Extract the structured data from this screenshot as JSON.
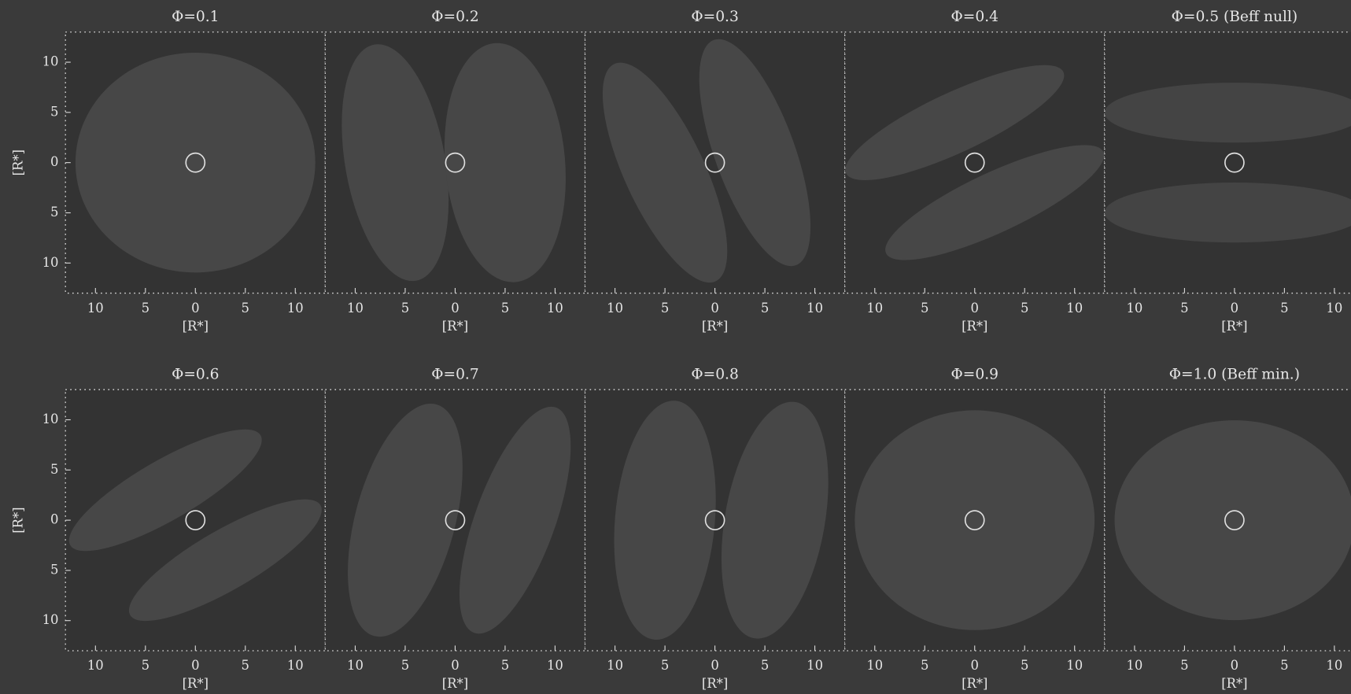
{
  "chart_data": [
    {
      "type": "image",
      "title": "Φ=0.1",
      "xlabel": "[R*]",
      "ylabel": "[R*]",
      "xlim": [
        -13,
        13
      ],
      "ylim": [
        -13,
        13
      ],
      "xticks": [
        {
          "value": -10,
          "label": "10"
        },
        {
          "value": -5,
          "label": "5"
        },
        0,
        5,
        10
      ],
      "yticks": [
        {
          "value": -10,
          "label": "10"
        },
        {
          "value": -5,
          "label": "5"
        },
        0,
        5,
        10
      ]
    },
    {
      "type": "image",
      "title": "Φ=0.2",
      "xlabel": "[R*]",
      "xlim": [
        -13,
        13
      ],
      "ylim": [
        -13,
        13
      ],
      "xticks": [
        {
          "value": -10,
          "label": "10"
        },
        {
          "value": -5,
          "label": "5"
        },
        0,
        5,
        10
      ]
    },
    {
      "type": "image",
      "title": "Φ=0.3",
      "xlabel": "[R*]",
      "xlim": [
        -13,
        13
      ],
      "ylim": [
        -13,
        13
      ],
      "xticks": [
        {
          "value": -10,
          "label": "10"
        },
        {
          "value": -5,
          "label": "5"
        },
        0,
        5,
        10
      ]
    },
    {
      "type": "image",
      "title": "Φ=0.4",
      "xlabel": "[R*]",
      "xlim": [
        -13,
        13
      ],
      "ylim": [
        -13,
        13
      ],
      "xticks": [
        {
          "value": -10,
          "label": "10"
        },
        {
          "value": -5,
          "label": "5"
        },
        0,
        5,
        10
      ]
    },
    {
      "type": "image",
      "title": "Φ=0.5 (Beff null)",
      "xlabel": "[R*]",
      "xlim": [
        -13,
        13
      ],
      "ylim": [
        -13,
        13
      ],
      "xticks": [
        {
          "value": -10,
          "label": "10"
        },
        {
          "value": -5,
          "label": "5"
        },
        0,
        5,
        10
      ]
    },
    {
      "type": "image",
      "title": "Φ=0.6",
      "xlabel": "[R*]",
      "ylabel": "[R*]",
      "xlim": [
        -13,
        13
      ],
      "ylim": [
        -13,
        13
      ],
      "xticks": [
        {
          "value": -10,
          "label": "10"
        },
        {
          "value": -5,
          "label": "5"
        },
        0,
        5,
        10
      ],
      "yticks": [
        {
          "value": -10,
          "label": "10"
        },
        {
          "value": -5,
          "label": "5"
        },
        0,
        5,
        10
      ]
    },
    {
      "type": "image",
      "title": "Φ=0.7",
      "xlabel": "[R*]",
      "xlim": [
        -13,
        13
      ],
      "ylim": [
        -13,
        13
      ],
      "xticks": [
        {
          "value": -10,
          "label": "10"
        },
        {
          "value": -5,
          "label": "5"
        },
        0,
        5,
        10
      ]
    },
    {
      "type": "image",
      "title": "Φ=0.8",
      "xlabel": "[R*]",
      "xlim": [
        -13,
        13
      ],
      "ylim": [
        -13,
        13
      ],
      "xticks": [
        {
          "value": -10,
          "label": "10"
        },
        {
          "value": -5,
          "label": "5"
        },
        0,
        5,
        10
      ]
    },
    {
      "type": "image",
      "title": "Φ=0.9",
      "xlabel": "[R*]",
      "xlim": [
        -13,
        13
      ],
      "ylim": [
        -13,
        13
      ],
      "xticks": [
        {
          "value": -10,
          "label": "10"
        },
        {
          "value": -5,
          "label": "5"
        },
        0,
        5,
        10
      ]
    },
    {
      "type": "image",
      "title": "Φ=1.0 (Beff min.)",
      "xlabel": "[R*]",
      "xlim": [
        -13,
        13
      ],
      "ylim": [
        -13,
        13
      ],
      "xticks": [
        {
          "value": -10,
          "label": "10"
        },
        {
          "value": -5,
          "label": "5"
        },
        0,
        5,
        10
      ]
    }
  ]
}
